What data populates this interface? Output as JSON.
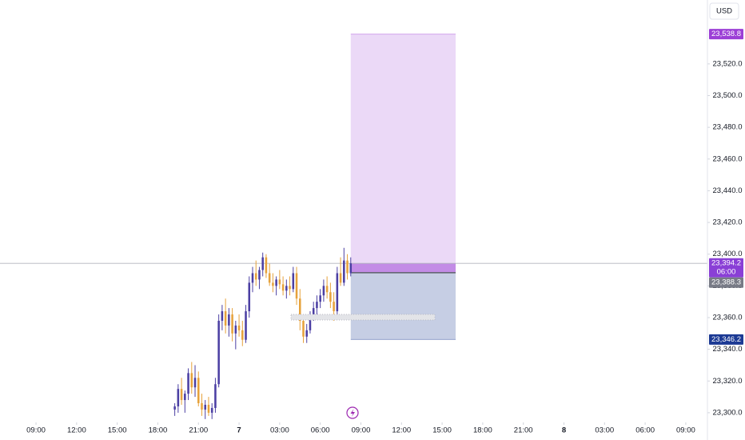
{
  "chart_data": {
    "type": "candlestick",
    "currency": "USD",
    "up_color": "#4b3fa3",
    "down_color": "#e6a23c",
    "x": [
      19.25,
      19.5,
      19.75,
      20,
      20.25,
      20.5,
      20.75,
      21,
      21.25,
      21.5,
      21.75,
      22,
      22.25,
      22.5,
      22.75,
      23,
      23.25,
      23.5,
      23.75,
      24,
      24.25,
      24.5,
      24.75,
      25,
      25.25,
      25.5,
      25.75,
      26,
      26.25,
      26.5,
      26.75,
      27,
      27.25,
      27.5,
      27.75,
      28,
      28.25,
      28.5,
      28.75,
      29,
      29.25,
      29.5,
      29.75,
      30,
      30.25,
      30.5,
      30.75,
      31,
      31.25,
      31.5,
      31.75,
      32,
      32.25
    ],
    "open": [
      23302,
      23304,
      23315,
      23308,
      23312,
      23325,
      23316,
      23322,
      23306,
      23302,
      23305,
      23300,
      23303,
      23318,
      23358,
      23364,
      23355,
      23362,
      23350,
      23355,
      23352,
      23346,
      23364,
      23382,
      23388,
      23384,
      23390,
      23398,
      23388,
      23382,
      23380,
      23384,
      23381,
      23377,
      23380,
      23378,
      23388,
      23372,
      23358,
      23348,
      23352,
      23362,
      23366,
      23370,
      23374,
      23380,
      23376,
      23370,
      23364,
      23388,
      23382,
      23396,
      23388
    ],
    "high": [
      23306,
      23318,
      23322,
      23314,
      23328,
      23332,
      23330,
      23326,
      23312,
      23308,
      23310,
      23306,
      23322,
      23362,
      23368,
      23372,
      23366,
      23366,
      23358,
      23362,
      23358,
      23368,
      23386,
      23392,
      23396,
      23392,
      23401,
      23400,
      23394,
      23388,
      23386,
      23390,
      23386,
      23384,
      23386,
      23392,
      23392,
      23378,
      23362,
      23356,
      23364,
      23370,
      23374,
      23378,
      23384,
      23386,
      23382,
      23376,
      23392,
      23398,
      23404,
      23400,
      23398
    ],
    "low": [
      23298,
      23300,
      23305,
      23300,
      23308,
      23312,
      23310,
      23304,
      23298,
      23296,
      23298,
      23296,
      23300,
      23316,
      23352,
      23350,
      23348,
      23345,
      23340,
      23348,
      23342,
      23344,
      23360,
      23376,
      23380,
      23378,
      23386,
      23385,
      23380,
      23376,
      23374,
      23378,
      23374,
      23372,
      23374,
      23376,
      23368,
      23352,
      23344,
      23344,
      23350,
      23358,
      23362,
      23366,
      23370,
      23372,
      23366,
      23358,
      23362,
      23380,
      23380,
      23384,
      23386
    ],
    "close": [
      23304,
      23315,
      23308,
      23312,
      23325,
      23316,
      23322,
      23306,
      23302,
      23305,
      23300,
      23303,
      23318,
      23358,
      23364,
      23355,
      23362,
      23350,
      23355,
      23352,
      23346,
      23364,
      23382,
      23388,
      23384,
      23390,
      23398,
      23388,
      23382,
      23380,
      23384,
      23381,
      23377,
      23380,
      23378,
      23388,
      23372,
      23358,
      23348,
      23352,
      23362,
      23366,
      23370,
      23374,
      23380,
      23376,
      23370,
      23364,
      23388,
      23382,
      23396,
      23388,
      23394.2
    ],
    "xlim": [
      6.34,
      58.6
    ],
    "ylim": [
      23293.9,
      23560.3
    ],
    "xticks": [
      {
        "value": 9,
        "label": "09:00"
      },
      {
        "value": 12,
        "label": "12:00"
      },
      {
        "value": 15,
        "label": "15:00"
      },
      {
        "value": 18,
        "label": "18:00"
      },
      {
        "value": 21,
        "label": "21:00"
      },
      {
        "value": 24,
        "label": "7"
      },
      {
        "value": 27,
        "label": "03:00"
      },
      {
        "value": 30,
        "label": "06:00"
      },
      {
        "value": 33,
        "label": "09:00"
      },
      {
        "value": 36,
        "label": "12:00"
      },
      {
        "value": 39,
        "label": "15:00"
      },
      {
        "value": 42,
        "label": "18:00"
      },
      {
        "value": 45,
        "label": "21:00"
      },
      {
        "value": 48,
        "label": "8"
      },
      {
        "value": 51,
        "label": "03:00"
      },
      {
        "value": 54,
        "label": "06:00"
      },
      {
        "value": 57,
        "label": "09:00"
      }
    ],
    "yticks": [
      {
        "value": 23300,
        "label": "23,300.0"
      },
      {
        "value": 23320,
        "label": "23,320.0"
      },
      {
        "value": 23340,
        "label": "23,340.0"
      },
      {
        "value": 23360,
        "label": "23,360.0"
      },
      {
        "value": 23380,
        "label": "23,380.0"
      },
      {
        "value": 23400,
        "label": "23,400.0"
      },
      {
        "value": 23420,
        "label": "23,420.0"
      },
      {
        "value": 23440,
        "label": "23,440.0"
      },
      {
        "value": 23460,
        "label": "23,460.0"
      },
      {
        "value": 23480,
        "label": "23,480.0"
      },
      {
        "value": 23500,
        "label": "23,500.0"
      },
      {
        "value": 23520,
        "label": "23,520.0"
      }
    ],
    "position": {
      "x": [
        32.25,
        40
      ],
      "entry": {
        "value": 23388.3,
        "label": "23,388.3",
        "color": "#787b86"
      },
      "target": {
        "value": 23538.8,
        "label": "23,538.8",
        "color": "#9c3fd6"
      },
      "stop": {
        "value": 23346.2,
        "label": "23,346.2",
        "color": "#1c3a94"
      }
    },
    "last_price": {
      "value": 23394.2,
      "label": "23,394.2",
      "countdown": "06:00",
      "color": "#8a3fd6"
    }
  }
}
